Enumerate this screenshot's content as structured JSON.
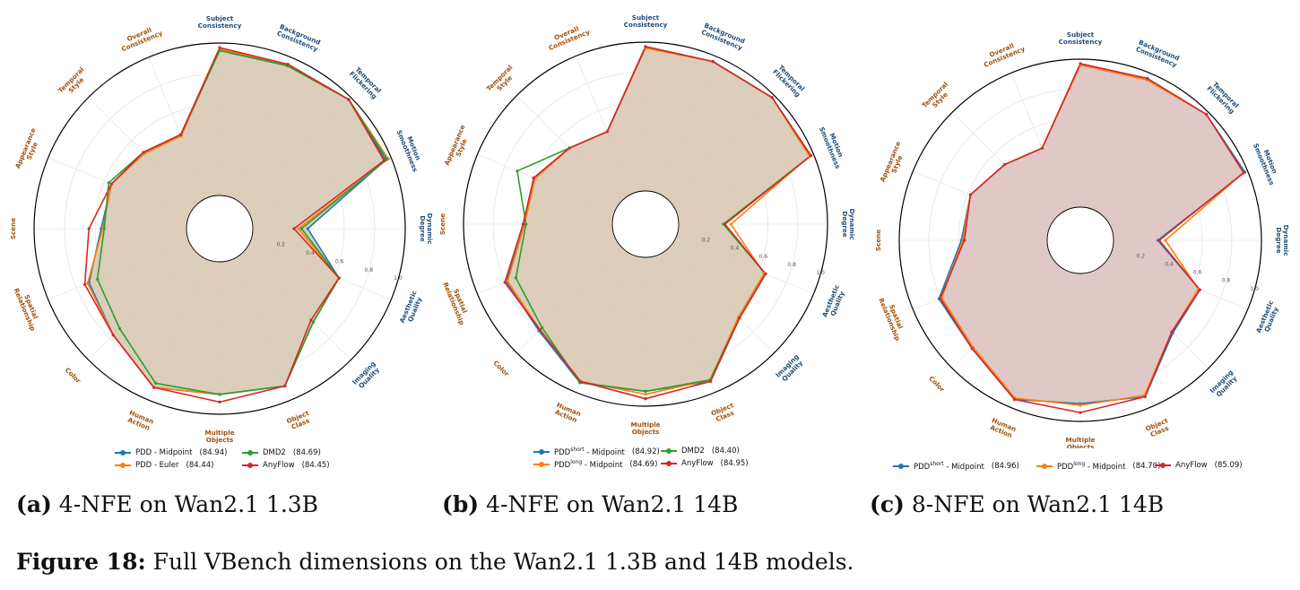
{
  "figure_caption": {
    "label": "Figure 18:",
    "text": " Full VBench dimensions on the Wan2.1 1.3B and 14B models."
  },
  "colors": {
    "blue": "#1f77b4",
    "orange": "#ff7f0e",
    "green": "#2ca02c",
    "red": "#d62728",
    "label_brown": "#a0520e",
    "label_navy": "#1f4e79"
  },
  "chart_data": [
    {
      "type": "radar",
      "caption_label": "(a)",
      "caption_text": " 4-NFE on Wan2.1 1.3B",
      "axes": [
        "Subject Consistency",
        "Background Consistency",
        "Temporal Flickering",
        "Motion Smoothness",
        "Dynamic Degree",
        "Aesthetic Quality",
        "Imaging Quality",
        "Object Class",
        "Multiple Objects",
        "Human Action",
        "Color",
        "Spatial Relationship",
        "Scene",
        "Appearance Style",
        "Temporal Style",
        "Overall Consistency"
      ],
      "rticks": [
        "0.2",
        "0.4",
        "0.6",
        "0.8",
        "1.0"
      ],
      "rlim": [
        0,
        1
      ],
      "fill_color": "#d8c9b4",
      "legend": [
        {
          "name": "PDD - Midpoint",
          "score": "(84.94)",
          "color": "#1f77b4"
        },
        {
          "name": "DMD2",
          "score": "(84.69)",
          "color": "#2ca02c"
        },
        {
          "name": "PDD - Euler",
          "score": "(84.44)",
          "color": "#ff7f0e"
        },
        {
          "name": "AnyFlow",
          "score": "(84.45)",
          "color": "#d62728"
        }
      ],
      "series": [
        {
          "name": "PDD - Midpoint",
          "color": "#1f77b4",
          "values": [
            0.96,
            0.94,
            0.98,
            0.96,
            0.36,
            0.63,
            0.65,
            0.9,
            0.87,
            0.91,
            0.77,
            0.71,
            0.56,
            0.55,
            0.49,
            0.45
          ]
        },
        {
          "name": "PDD - Euler",
          "color": "#ff7f0e",
          "values": [
            0.96,
            0.95,
            0.98,
            0.98,
            0.3,
            0.63,
            0.65,
            0.9,
            0.87,
            0.91,
            0.77,
            0.72,
            0.55,
            0.55,
            0.48,
            0.44
          ]
        },
        {
          "name": "DMD2",
          "color": "#2ca02c",
          "values": [
            0.95,
            0.94,
            0.98,
            0.97,
            0.32,
            0.63,
            0.65,
            0.9,
            0.87,
            0.88,
            0.71,
            0.65,
            0.54,
            0.57,
            0.49,
            0.45
          ]
        },
        {
          "name": "AnyFlow",
          "color": "#d62728",
          "values": [
            0.97,
            0.95,
            0.98,
            0.95,
            0.27,
            0.63,
            0.63,
            0.9,
            0.92,
            0.91,
            0.77,
            0.74,
            0.64,
            0.55,
            0.49,
            0.45
          ]
        }
      ]
    },
    {
      "type": "radar",
      "caption_label": "(b)",
      "caption_text": " 4-NFE on Wan2.1 14B",
      "axes": [
        "Subject Consistency",
        "Background Consistency",
        "Temporal Flickering",
        "Motion Smoothness",
        "Dynamic Degree",
        "Aesthetic Quality",
        "Imaging Quality",
        "Object Class",
        "Multiple Objects",
        "Human Action",
        "Color",
        "Spatial Relationship",
        "Scene",
        "Appearance Style",
        "Temporal Style",
        "Overall Consistency"
      ],
      "rticks": [
        "0.2",
        "0.4",
        "0.6",
        "0.8",
        "1.0"
      ],
      "rlim": [
        0,
        1
      ],
      "fill_color": "#d8c9b4",
      "legend": [
        {
          "name": "PDD",
          "sup": "short",
          "name_tail": " - Midpoint",
          "score": "(84.92)",
          "color": "#1f77b4"
        },
        {
          "name": "DMD2",
          "score": "(84.40)",
          "color": "#2ca02c"
        },
        {
          "name": "PDD",
          "sup": "long",
          "name_tail": " - Midpoint",
          "score": "(84.69)",
          "color": "#ff7f0e"
        },
        {
          "name": "AnyFlow",
          "score": "(84.95)",
          "color": "#d62728"
        }
      ],
      "series": [
        {
          "name": "PDD short - Midpoint",
          "color": "#1f77b4",
          "values": [
            0.97,
            0.96,
            0.98,
            0.98,
            0.31,
            0.65,
            0.67,
            0.92,
            0.9,
            0.93,
            0.79,
            0.79,
            0.59,
            0.59,
            0.5,
            0.45
          ]
        },
        {
          "name": "PDD long - Midpoint",
          "color": "#ff7f0e",
          "values": [
            0.96,
            0.96,
            0.98,
            0.97,
            0.35,
            0.64,
            0.66,
            0.91,
            0.92,
            0.92,
            0.78,
            0.78,
            0.59,
            0.58,
            0.5,
            0.45
          ]
        },
        {
          "name": "DMD2",
          "color": "#2ca02c",
          "values": [
            0.97,
            0.96,
            0.98,
            0.98,
            0.3,
            0.65,
            0.67,
            0.91,
            0.9,
            0.93,
            0.76,
            0.72,
            0.58,
            0.71,
            0.5,
            0.45
          ]
        },
        {
          "name": "AnyFlow",
          "color": "#d62728",
          "values": [
            0.97,
            0.96,
            0.98,
            0.98,
            0.31,
            0.65,
            0.67,
            0.92,
            0.95,
            0.92,
            0.78,
            0.8,
            0.6,
            0.59,
            0.5,
            0.45
          ]
        }
      ]
    },
    {
      "type": "radar",
      "caption_label": "(c)",
      "caption_text": " 8-NFE on Wan2.1 14B",
      "axes": [
        "Subject Consistency",
        "Background Consistency",
        "Temporal Flickering",
        "Motion Smoothness",
        "Dynamic Degree",
        "Aesthetic Quality",
        "Imaging Quality",
        "Object Class",
        "Multiple Objects",
        "Human Action",
        "Color",
        "Spatial Relationship",
        "Scene",
        "Appearance Style",
        "Temporal Style",
        "Overall Consistency"
      ],
      "rticks": [
        "0.2",
        "0.4",
        "0.6",
        "0.8",
        "1.0"
      ],
      "rlim": [
        0,
        1
      ],
      "fill_color": "#dcc2c0",
      "legend": [
        {
          "name": "PDD",
          "sup": "short",
          "name_tail": " - Midpoint",
          "score": "(84.96)",
          "color": "#1f77b4"
        },
        {
          "name": "PDD",
          "sup": "long",
          "name_tail": " - Midpoint",
          "score": "(84.70)",
          "color": "#ff7f0e"
        },
        {
          "name": "AnyFlow",
          "score": "(85.09)",
          "color": "#d62728"
        }
      ],
      "series": [
        {
          "name": "PDD short - Midpoint",
          "color": "#1f77b4",
          "values": [
            0.97,
            0.96,
            0.98,
            0.98,
            0.3,
            0.65,
            0.66,
            0.92,
            0.88,
            0.94,
            0.81,
            0.81,
            0.58,
            0.58,
            0.5,
            0.45
          ]
        },
        {
          "name": "PDD long - Midpoint",
          "color": "#ff7f0e",
          "values": [
            0.96,
            0.95,
            0.98,
            0.97,
            0.35,
            0.64,
            0.65,
            0.91,
            0.89,
            0.93,
            0.8,
            0.79,
            0.57,
            0.58,
            0.5,
            0.45
          ]
        },
        {
          "name": "AnyFlow",
          "color": "#d62728",
          "values": [
            0.97,
            0.96,
            0.98,
            0.97,
            0.31,
            0.65,
            0.65,
            0.92,
            0.94,
            0.94,
            0.81,
            0.8,
            0.56,
            0.58,
            0.5,
            0.45
          ]
        }
      ]
    }
  ]
}
